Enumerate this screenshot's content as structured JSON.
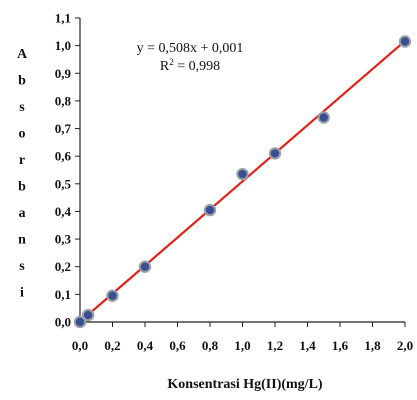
{
  "chart_data": {
    "type": "scatter",
    "title": "",
    "xlabel": "Konsentrasi Hg(II)(mg/L)",
    "ylabel_letters": [
      "A",
      "b",
      "s",
      "o",
      "r",
      "b",
      "a",
      "n",
      "s",
      "i"
    ],
    "xlim": [
      0,
      2.0
    ],
    "ylim": [
      0,
      1.1
    ],
    "x_ticks": [
      0,
      0.2,
      0.4,
      0.6,
      0.8,
      1.0,
      1.2,
      1.4,
      1.6,
      1.8,
      2.0
    ],
    "x_tick_labels": [
      "0,0",
      "0,2",
      "0,4",
      "0,6",
      "0,8",
      "1,0",
      "1,2",
      "1,4",
      "1,6",
      "1,8",
      "2,0"
    ],
    "y_ticks": [
      0,
      0.1,
      0.2,
      0.3,
      0.4,
      0.5,
      0.6,
      0.7,
      0.8,
      0.9,
      1.0,
      1.1
    ],
    "y_tick_labels": [
      "0,0",
      "0,1",
      "0,2",
      "0,3",
      "0,4",
      "0,5",
      "0,6",
      "0,7",
      "0,8",
      "0,9",
      "1,0",
      "1,1"
    ],
    "grid": false,
    "legend": "none",
    "points": [
      {
        "x": 0.0,
        "y": 0.0
      },
      {
        "x": 0.05,
        "y": 0.025
      },
      {
        "x": 0.2,
        "y": 0.095
      },
      {
        "x": 0.4,
        "y": 0.2
      },
      {
        "x": 0.8,
        "y": 0.405
      },
      {
        "x": 1.0,
        "y": 0.535
      },
      {
        "x": 1.2,
        "y": 0.61
      },
      {
        "x": 1.5,
        "y": 0.74
      },
      {
        "x": 2.0,
        "y": 1.015
      }
    ],
    "trendline": {
      "slope": 0.508,
      "intercept": 0.001,
      "x_range": [
        0,
        2.0
      ]
    },
    "equation_text": "y = 0,508x + 0,001",
    "r2_prefix": "R",
    "r2_sup": "2",
    "r2_suffix": " = 0,998",
    "colors": {
      "marker_fill": "#3a4f8f",
      "marker_stroke": "#9aa0a8",
      "trendline": "#e32119",
      "axis": "#222222"
    }
  }
}
